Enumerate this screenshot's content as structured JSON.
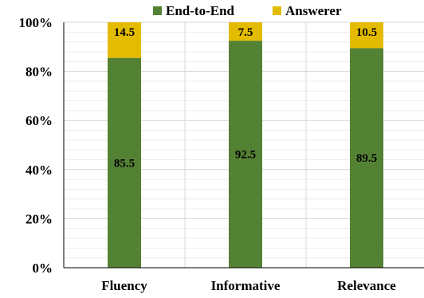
{
  "chart_data": {
    "type": "bar",
    "stacked": true,
    "categories": [
      "Fluency",
      "Informative",
      "Relevance"
    ],
    "series": [
      {
        "name": "End-to-End",
        "values": [
          85.5,
          92.5,
          89.5
        ],
        "color": "#548235"
      },
      {
        "name": "Answerer",
        "values": [
          14.5,
          7.5,
          10.5
        ],
        "color": "#E3BB00"
      }
    ],
    "ylim": [
      0,
      100
    ],
    "y_ticks": [
      0,
      20,
      40,
      60,
      80,
      100
    ],
    "y_tick_format": "percent",
    "legend_position": "top",
    "grid": true,
    "title": "",
    "xlabel": "",
    "ylabel": ""
  }
}
